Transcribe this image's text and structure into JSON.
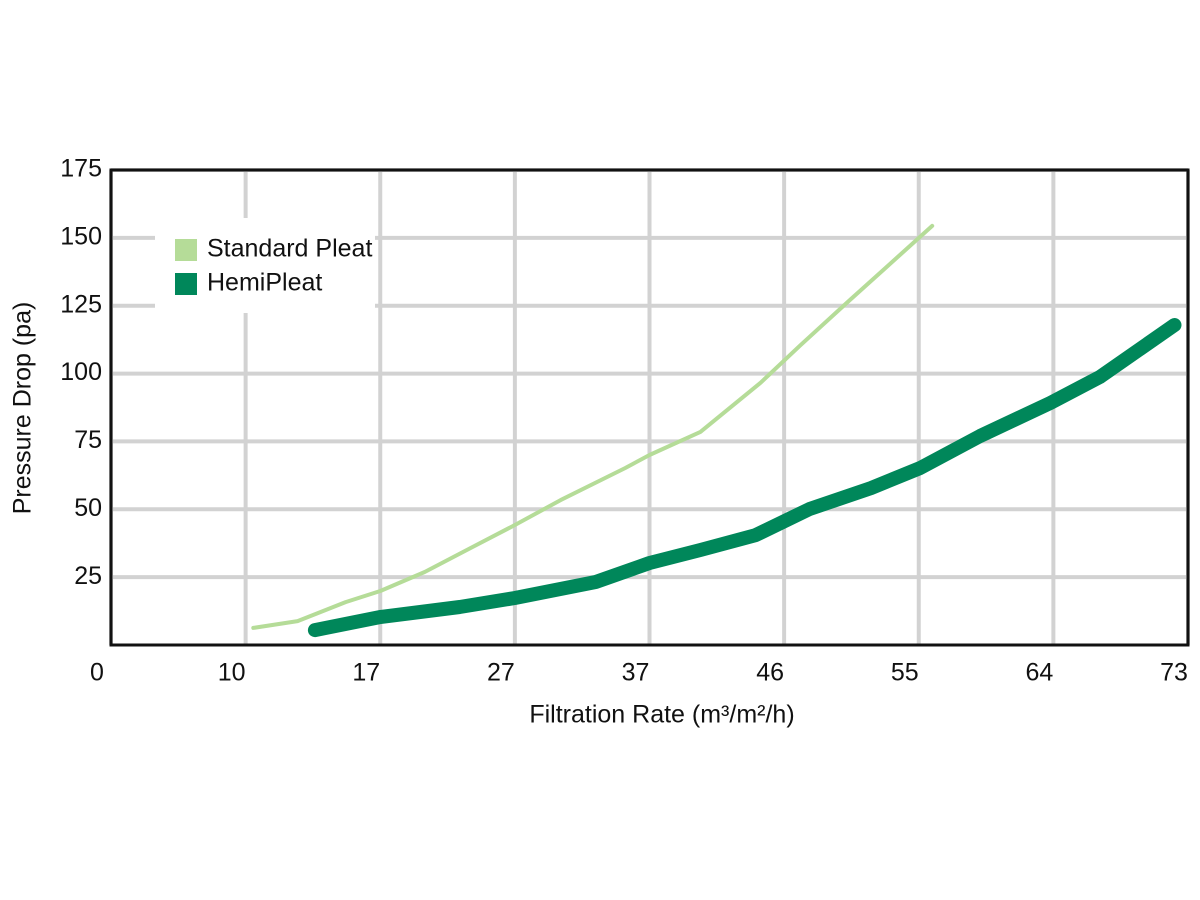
{
  "chart_data": {
    "type": "line",
    "x_label": "Filtration Rate (m³/m²/h)",
    "y_label": "Pressure Drop (pa)",
    "xlim": [
      0,
      73
    ],
    "xticks": [
      0,
      10,
      17,
      27,
      37,
      46,
      55,
      64,
      73
    ],
    "ylim": [
      0,
      175
    ],
    "yticks": [
      25,
      50,
      75,
      100,
      125,
      150,
      175
    ],
    "grid": true,
    "legend": "upper left",
    "series": [
      {
        "name": "Standard Pleat",
        "color": "#b5dc98",
        "width": 4,
        "x": [
          10.4,
          12.7,
          15.2,
          17,
          20.3,
          23.7,
          27,
          30.4,
          35.2,
          37,
          40.4,
          44.4,
          47.1,
          50.4,
          55.9
        ],
        "values": [
          6.3,
          8.8,
          15.8,
          19.9,
          26.9,
          35.7,
          44.2,
          53.4,
          65.2,
          70,
          78.5,
          96.5,
          110.5,
          127.1,
          154.4
        ]
      },
      {
        "name": "HemiPleat",
        "color": "#00875a",
        "width": 14,
        "x": [
          13.6,
          17,
          22.9,
          27,
          33,
          37,
          40.4,
          44.1,
          47.7,
          51.8,
          55.1,
          59.1,
          63.8,
          67.1,
          72.1
        ],
        "values": [
          5.5,
          10.3,
          14,
          17.3,
          23.2,
          30.2,
          35,
          40.5,
          50.1,
          57.8,
          65.2,
          77,
          89.2,
          98.7,
          117.9
        ]
      }
    ]
  }
}
